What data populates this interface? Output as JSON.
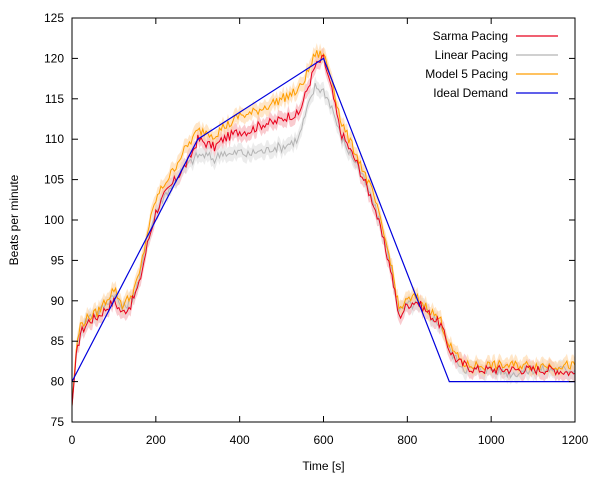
{
  "chart_data": {
    "type": "line",
    "title": "",
    "xlabel": "Time [s]",
    "ylabel": "Beats per minute",
    "xlim": [
      0,
      1200
    ],
    "ylim": [
      75,
      125
    ],
    "xticks": [
      "0",
      "200",
      "400",
      "600",
      "800",
      "1000",
      "1200"
    ],
    "yticks": [
      "75",
      "80",
      "85",
      "90",
      "95",
      "100",
      "105",
      "110",
      "115",
      "120",
      "125"
    ],
    "grid": false,
    "legend_position": "top-right",
    "series": [
      {
        "name": "Sarma Pacing",
        "color": "#e8001c",
        "band_color": "#f4a0a8",
        "x": [
          0,
          10,
          20,
          40,
          60,
          80,
          100,
          120,
          140,
          160,
          180,
          200,
          220,
          240,
          260,
          280,
          300,
          320,
          340,
          360,
          380,
          400,
          420,
          440,
          460,
          480,
          500,
          520,
          540,
          560,
          580,
          600,
          620,
          640,
          660,
          680,
          700,
          720,
          740,
          760,
          770,
          780,
          800,
          820,
          840,
          860,
          880,
          900,
          920,
          940,
          960,
          1000,
          1050,
          1100,
          1150,
          1200
        ],
        "y": [
          77,
          83,
          86,
          87.5,
          88,
          89,
          90,
          88.5,
          89.5,
          92,
          97,
          101,
          103,
          104.5,
          106,
          107.5,
          110,
          109.5,
          109,
          110,
          110.5,
          111,
          111,
          111.5,
          112,
          112,
          112.5,
          113,
          113,
          116,
          119,
          120,
          116,
          111,
          109,
          107,
          104.5,
          102,
          98,
          94,
          91,
          88,
          89.5,
          90,
          89,
          88,
          87,
          84,
          82.5,
          82,
          81.5,
          81.5,
          81.5,
          81.5,
          81.5,
          81
        ]
      },
      {
        "name": "Linear Pacing",
        "color": "#b4b4b4",
        "band_color": "#dcdcdc",
        "x": [
          0,
          10,
          20,
          40,
          60,
          80,
          100,
          120,
          140,
          160,
          180,
          200,
          220,
          240,
          260,
          280,
          300,
          320,
          340,
          360,
          380,
          400,
          420,
          440,
          460,
          480,
          500,
          520,
          540,
          560,
          580,
          600,
          620,
          640,
          660,
          680,
          700,
          720,
          740,
          760,
          770,
          780,
          800,
          820,
          840,
          860,
          880,
          900,
          920,
          940,
          960,
          1000,
          1050,
          1100,
          1150,
          1200
        ],
        "y": [
          77,
          83.5,
          86.5,
          88,
          88.5,
          89.5,
          91,
          89,
          90,
          92.5,
          97.5,
          101,
          103,
          104.5,
          106,
          107,
          108,
          108,
          107.5,
          108.5,
          108,
          108.5,
          108,
          108.5,
          108.5,
          109,
          109,
          109.5,
          110,
          113.5,
          116.5,
          116,
          114,
          110.5,
          108.5,
          107,
          104.5,
          102,
          98.5,
          94.5,
          91.5,
          88.5,
          89.5,
          89.5,
          89,
          88,
          87,
          84,
          82.5,
          81.5,
          81.5,
          81.5,
          81,
          81.5,
          81.5,
          81.5
        ]
      },
      {
        "name": "Model 5 Pacing",
        "color": "#ff9e00",
        "band_color": "#ffd29a",
        "x": [
          0,
          10,
          20,
          40,
          60,
          80,
          100,
          120,
          140,
          160,
          180,
          200,
          220,
          240,
          260,
          280,
          300,
          320,
          340,
          360,
          380,
          400,
          420,
          440,
          460,
          480,
          500,
          520,
          540,
          560,
          580,
          600,
          620,
          640,
          660,
          680,
          700,
          720,
          740,
          760,
          770,
          780,
          800,
          820,
          840,
          860,
          880,
          900,
          920,
          940,
          960,
          1000,
          1050,
          1100,
          1150,
          1200
        ],
        "y": [
          77,
          84,
          87,
          88,
          88.5,
          90,
          91.5,
          89.5,
          90.5,
          93,
          98.5,
          102.5,
          104.5,
          106,
          108,
          109.5,
          111,
          111,
          110.5,
          111.5,
          112,
          113,
          113,
          113.5,
          114,
          114.5,
          115,
          115.5,
          116,
          118,
          120.5,
          120.5,
          117.5,
          112.5,
          110,
          108,
          105.5,
          103,
          99,
          95,
          92,
          89,
          90,
          90.5,
          89.5,
          88.5,
          87.5,
          84.5,
          83,
          82,
          82,
          82,
          82,
          82,
          82,
          82
        ]
      },
      {
        "name": "Ideal Demand",
        "color": "#0000dd",
        "x": [
          0,
          300,
          600,
          900,
          1200
        ],
        "y": [
          80,
          110,
          120,
          80,
          80
        ]
      }
    ]
  }
}
